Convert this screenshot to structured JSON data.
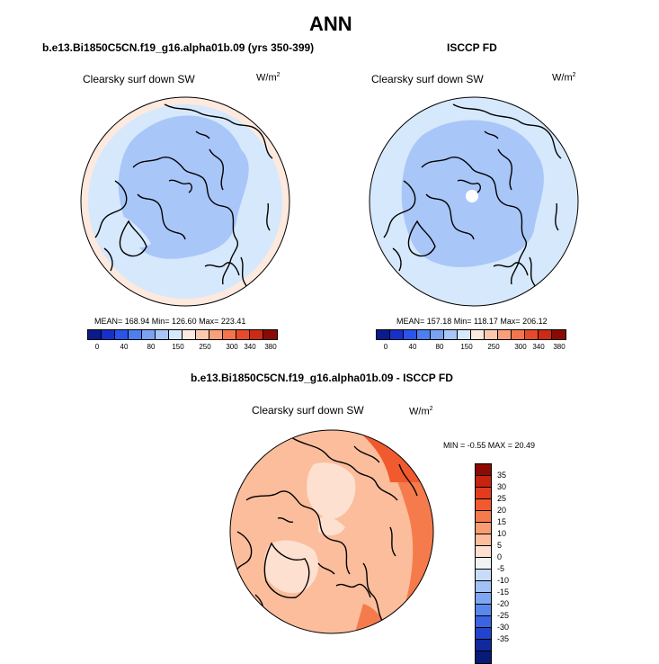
{
  "title": "ANN",
  "panels": [
    {
      "subtitle": "b.e13.Bi1850C5CN.f19_g16.alpha01b.09 (yrs 350-399)",
      "variable": "Clearsky surf down SW",
      "units_base": "W/m",
      "units_exp": "2",
      "stats": "MEAN= 168.94   Min= 126.60   Max= 223.41"
    },
    {
      "subtitle": "ISCCP FD",
      "variable": "Clearsky surf down SW",
      "units_base": "W/m",
      "units_exp": "2",
      "stats": "MEAN= 157.18   Min= 118.17   Max= 206.12"
    }
  ],
  "abs_colorbar": {
    "colors": [
      "#0b1a8c",
      "#1730c8",
      "#2a55e8",
      "#4d7ff0",
      "#7ba3f4",
      "#a8c6f8",
      "#d6e8fc",
      "#fde9de",
      "#fcc9b0",
      "#f8a07c",
      "#f27550",
      "#e64a2c",
      "#cc2a14",
      "#8b0a04"
    ],
    "tick_labels": [
      "0",
      "40",
      "80",
      "150",
      "250",
      "300",
      "340",
      "380"
    ]
  },
  "diff_panel": {
    "subtitle": "b.e13.Bi1850C5CN.f19_g16.alpha01b.09 - ISCCP FD",
    "variable": "Clearsky surf down SW",
    "units_base": "W/m",
    "units_exp": "2",
    "stats": "MIN =  -0.55 MAX =  20.49"
  },
  "diff_colorbar": {
    "colors": [
      "#8b0a04",
      "#c8230f",
      "#e23c1c",
      "#f05a2e",
      "#f57b4c",
      "#f89c72",
      "#fbbd9c",
      "#fde0d0",
      "#f3f3f3",
      "#c8dcfa",
      "#a2c2f6",
      "#7ea6f2",
      "#5a87ec",
      "#3b64e2",
      "#2244cc",
      "#12289e",
      "#081a78"
    ],
    "tick_labels": [
      "35",
      "30",
      "25",
      "20",
      "15",
      "10",
      "5",
      "0",
      "-5",
      "-10",
      "-15",
      "-20",
      "-25",
      "-30",
      "-35"
    ]
  }
}
